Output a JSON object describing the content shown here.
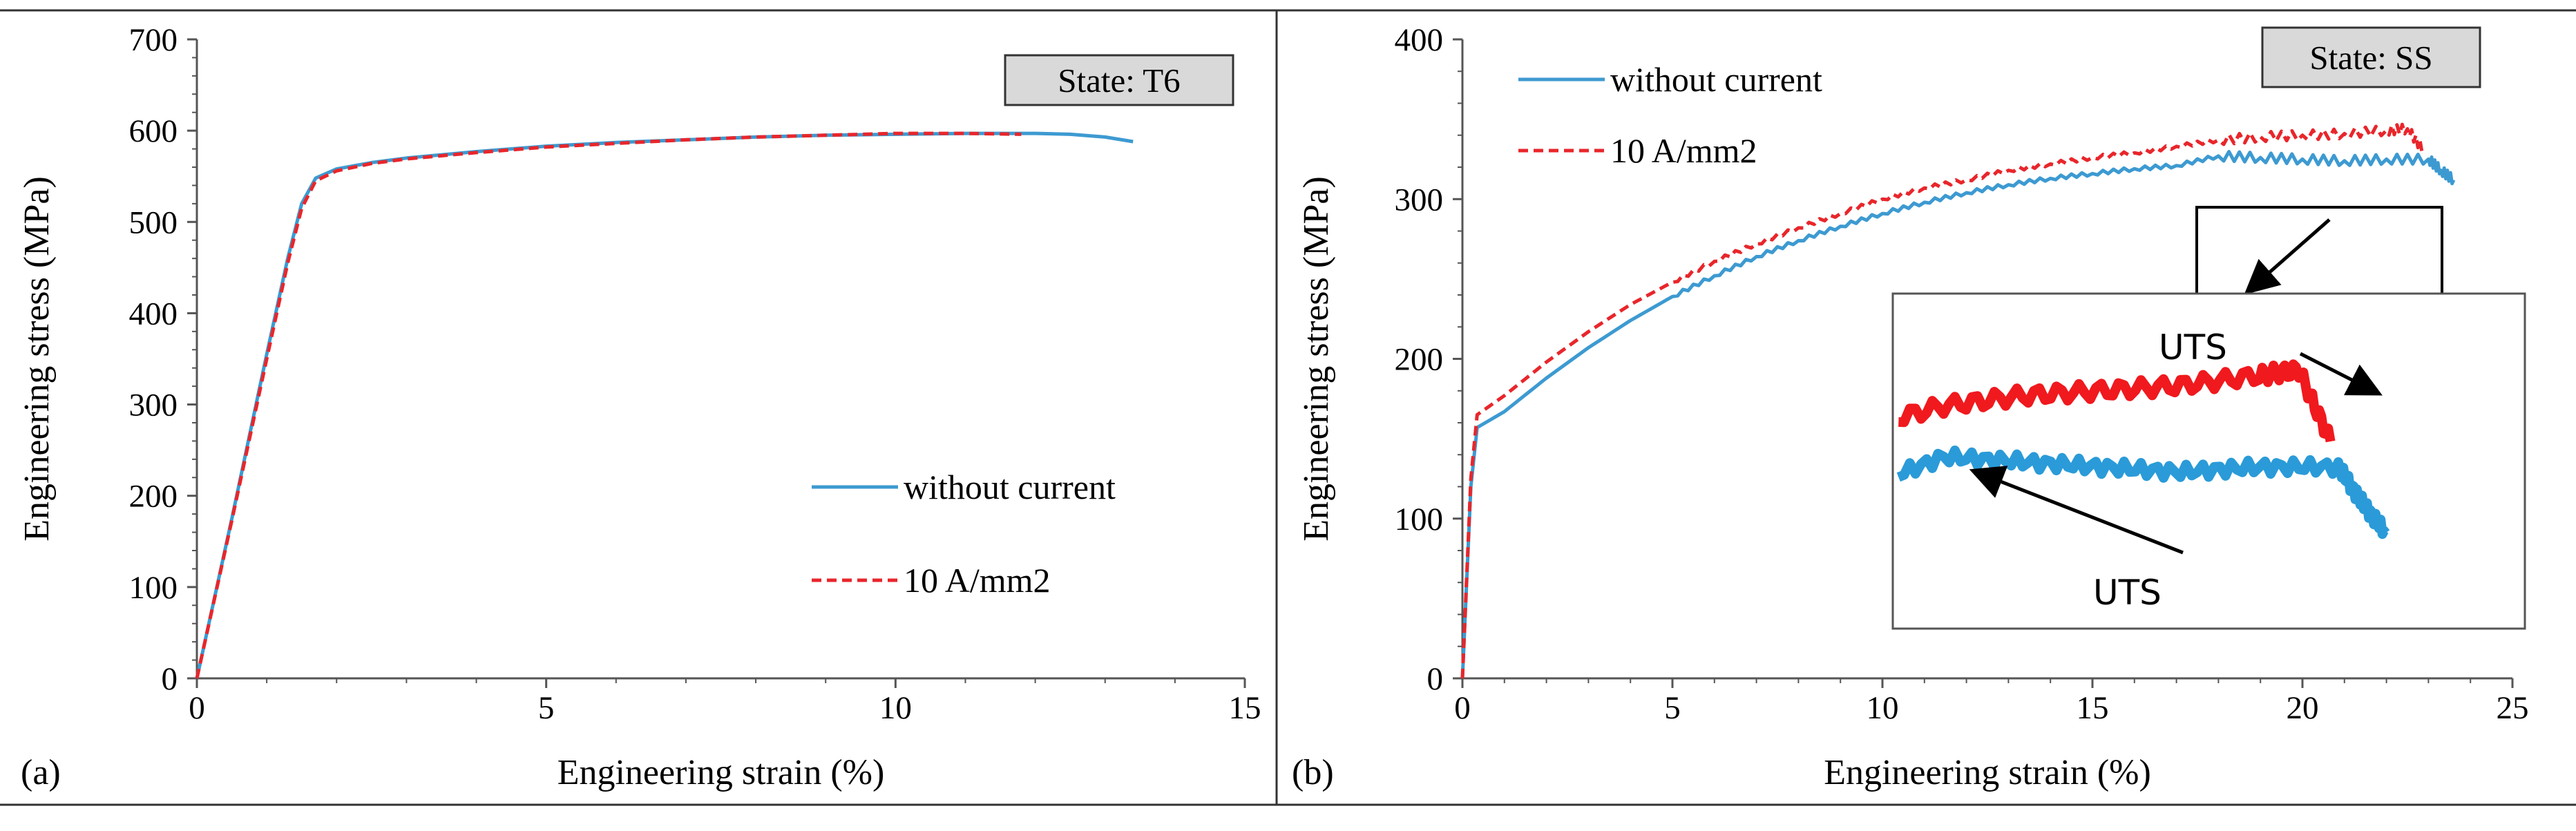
{
  "colors": {
    "without_current": "#3d9ad1",
    "current": "#e8262b",
    "axis": "#555555",
    "state_box_fill": "#d9d9d9"
  },
  "chart_data": [
    {
      "panel": "(a)",
      "type": "line",
      "state_label": "State: T6",
      "xlabel": "Engineering strain (%)",
      "ylabel": "Engineering stress (MPa)",
      "xlim": [
        0,
        15
      ],
      "ylim": [
        0,
        700
      ],
      "xticks": [
        "0",
        "5",
        "10",
        "15"
      ],
      "yticks": [
        "0",
        "100",
        "200",
        "300",
        "400",
        "500",
        "600",
        "700"
      ],
      "legend": [
        "without current",
        "10 A/mm2"
      ],
      "series": [
        {
          "name": "without current",
          "style": "solid",
          "x": [
            0,
            0.5,
            1.0,
            1.3,
            1.5,
            1.7,
            2.0,
            2.5,
            3,
            4,
            5,
            6,
            7,
            8,
            9,
            10,
            11,
            12,
            12.5,
            13,
            13.4
          ],
          "y": [
            0,
            175,
            355,
            460,
            520,
            548,
            558,
            565,
            570,
            577,
            583,
            587,
            590,
            593,
            595,
            596,
            597,
            597,
            596,
            593,
            588
          ]
        },
        {
          "name": "10 A/mm2",
          "style": "dashed",
          "x": [
            0,
            0.5,
            1.0,
            1.3,
            1.5,
            1.7,
            2.0,
            2.5,
            3,
            4,
            5,
            6,
            7,
            8,
            9,
            10,
            11,
            11.8
          ],
          "y": [
            0,
            173,
            350,
            455,
            515,
            545,
            556,
            564,
            569,
            576,
            582,
            586,
            590,
            593,
            595,
            597,
            597,
            596
          ]
        }
      ]
    },
    {
      "panel": "(b)",
      "type": "line",
      "state_label": "State: SS",
      "xlabel": "Engineering strain (%)",
      "ylabel": "Engineering stress (MPa)",
      "xlim": [
        0,
        25
      ],
      "ylim": [
        0,
        400
      ],
      "xticks": [
        "0",
        "5",
        "10",
        "15",
        "20",
        "25"
      ],
      "yticks": [
        "0",
        "100",
        "200",
        "300",
        "400"
      ],
      "legend": [
        "without current",
        "10 A/mm2"
      ],
      "inset_annotations": [
        "UTS",
        "UTS"
      ],
      "series": [
        {
          "name": "without current",
          "style": "solid",
          "x": [
            0,
            0.2,
            0.35,
            1,
            2,
            3,
            4,
            5,
            6,
            7,
            8,
            9,
            10,
            11,
            12,
            13,
            14,
            15,
            16,
            17,
            18,
            19,
            20,
            21,
            22,
            23,
            23.3,
            23.6
          ],
          "y": [
            0,
            120,
            157,
            167,
            188,
            207,
            224,
            239,
            252,
            264,
            274,
            283,
            291,
            298,
            304,
            309,
            313,
            316,
            319,
            321,
            327,
            326,
            325,
            324,
            325,
            325,
            318,
            312
          ]
        },
        {
          "name": "10 A/mm2",
          "style": "dashed",
          "x": [
            0,
            0.2,
            0.35,
            1,
            2,
            3,
            4,
            5,
            6,
            7,
            8,
            9,
            10,
            11,
            12,
            13,
            14,
            15,
            16,
            17,
            18,
            19,
            20,
            21,
            22,
            22.5,
            22.9
          ],
          "y": [
            0,
            125,
            165,
            177,
            198,
            217,
            234,
            248,
            261,
            272,
            282,
            291,
            300,
            307,
            312,
            318,
            322,
            326,
            329,
            333,
            337,
            339,
            340,
            341,
            343,
            344,
            330
          ]
        }
      ]
    }
  ]
}
